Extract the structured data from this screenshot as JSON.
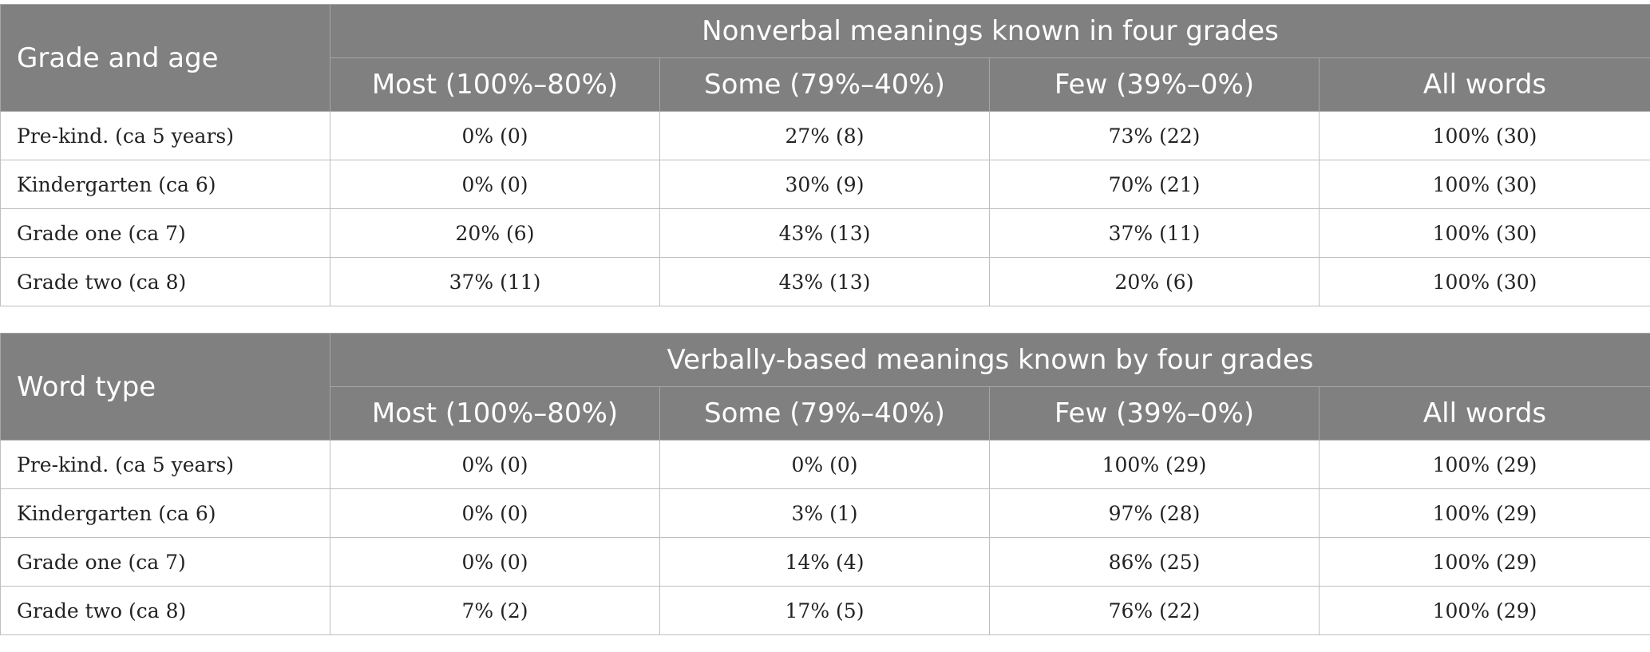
{
  "tables": [
    {
      "corner_label": "Grade and age",
      "group_header": "Nonverbal meanings known in four grades",
      "columns": [
        "Most (100%–80%)",
        "Some (79%–40%)",
        "Few (39%–0%)",
        "All words"
      ],
      "rows": [
        {
          "label": "Pre-kind. (ca 5 years)",
          "cells": [
            "0% (0)",
            "27% (8)",
            "73% (22)",
            "100% (30)"
          ]
        },
        {
          "label": "Kindergarten (ca 6)",
          "cells": [
            "0% (0)",
            "30% (9)",
            "70% (21)",
            "100% (30)"
          ]
        },
        {
          "label": "Grade one (ca 7)",
          "cells": [
            "20% (6)",
            "43% (13)",
            "37% (11)",
            "100% (30)"
          ]
        },
        {
          "label": "Grade two (ca 8)",
          "cells": [
            "37% (11)",
            "43% (13)",
            "20% (6)",
            "100% (30)"
          ]
        }
      ]
    },
    {
      "corner_label": "Word type",
      "group_header": "Verbally-based meanings known by four grades",
      "columns": [
        "Most (100%–80%)",
        "Some (79%–40%)",
        "Few (39%–0%)",
        "All words"
      ],
      "rows": [
        {
          "label": "Pre-kind. (ca 5 years)",
          "cells": [
            "0% (0)",
            "0% (0)",
            "100% (29)",
            "100% (29)"
          ]
        },
        {
          "label": "Kindergarten (ca 6)",
          "cells": [
            "0% (0)",
            "3% (1)",
            "97% (28)",
            "100% (29)"
          ]
        },
        {
          "label": "Grade one (ca 7)",
          "cells": [
            "0% (0)",
            "14% (4)",
            "86% (25)",
            "100% (29)"
          ]
        },
        {
          "label": "Grade two (ca 8)",
          "cells": [
            "7% (2)",
            "17% (5)",
            "76% (22)",
            "100% (29)"
          ]
        }
      ]
    }
  ],
  "colors": {
    "header_bg": "#808080",
    "header_text": "#ffffff",
    "border": "#bfbfbf"
  }
}
